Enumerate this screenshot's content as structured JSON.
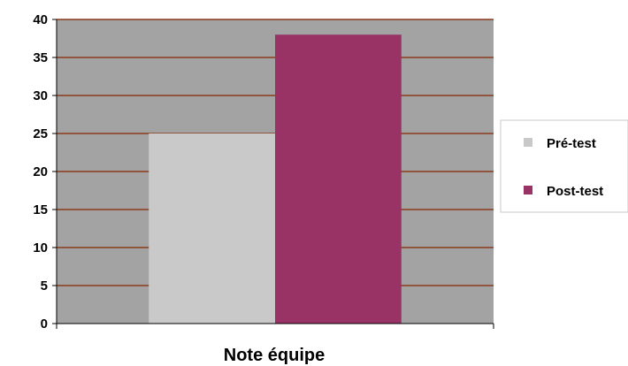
{
  "chart_data": {
    "type": "bar",
    "categories": [
      "Note équipe"
    ],
    "series": [
      {
        "name": "Pré-test",
        "values": [
          25
        ],
        "color": "#c9c9c9"
      },
      {
        "name": "Post-test",
        "values": [
          38
        ],
        "color": "#993366"
      }
    ],
    "xlabel": "Note équipe",
    "ylim": [
      0,
      40
    ],
    "yticks": [
      0,
      5,
      10,
      15,
      20,
      25,
      30,
      35,
      40
    ],
    "grid": true,
    "legend": "right",
    "colors": {
      "plot_background": "#a3a3a3",
      "gridline": "#8b3a1a",
      "axis": "#000000",
      "tick_label": "#000000",
      "xlabel": "#000000"
    }
  }
}
